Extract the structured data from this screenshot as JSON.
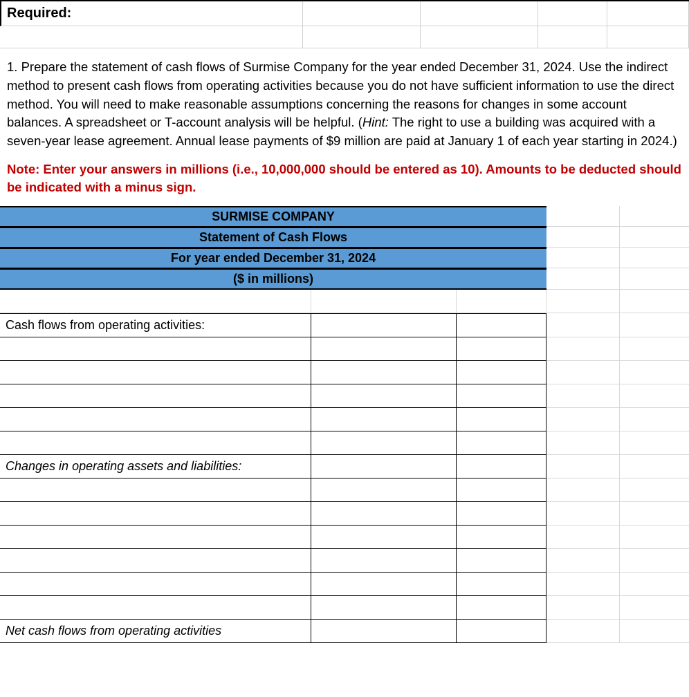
{
  "required_label": "Required:",
  "instruction_text": "1. Prepare the statement of cash flows of Surmise Company for the year ended December 31, 2024. Use the indirect method to present cash flows from operating activities because you do not have sufficient information to use the direct method. You will need to make reasonable assumptions concerning the reasons for changes in some account balances. A spreadsheet or T-account analysis will be helpful. (",
  "hint_label": "Hint:",
  "instruction_text2": " The right to use a building was acquired with a seven-year lease agreement. Annual lease payments of $9 million are paid at January 1 of each year starting in 2024.)",
  "note_text": "Note: Enter your answers in millions (i.e., 10,000,000 should be entered as 10). Amounts to be deducted should be indicated with a minus sign.",
  "header": {
    "company": "SURMISE COMPANY",
    "title": "Statement of Cash Flows",
    "period": "For year ended December 31, 2024",
    "units": "($ in millions)"
  },
  "rows": {
    "operating_header": "Cash flows from operating activities:",
    "changes_header": "Changes in operating assets and liabilities:",
    "net_operating": "Net cash flows from operating activities"
  },
  "colors": {
    "header_bg": "#5b9bd5",
    "note_color": "#c00000",
    "border_light": "#d8d8d8",
    "border_dark": "#000000"
  }
}
